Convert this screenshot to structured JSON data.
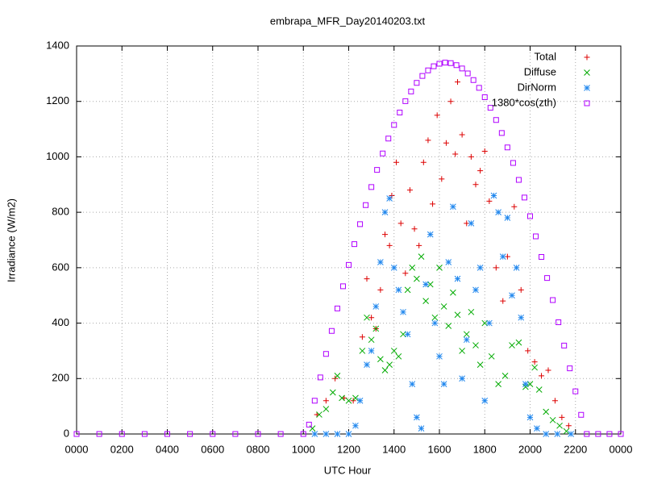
{
  "chart_data": {
    "type": "scatter",
    "title": "embrapa_MFR_Day20140203.txt",
    "x_label": "UTC Hour",
    "y_label": "Irradiance (W/m2)",
    "xlim": [
      0,
      24
    ],
    "ylim": [
      0,
      1400
    ],
    "grid": true,
    "legend": "top-right",
    "xticks": [
      {
        "value": 0,
        "label": "0000"
      },
      {
        "value": 2,
        "label": "0200"
      },
      {
        "value": 4,
        "label": "0400"
      },
      {
        "value": 6,
        "label": "0600"
      },
      {
        "value": 8,
        "label": "0800"
      },
      {
        "value": 10,
        "label": "1000"
      },
      {
        "value": 12,
        "label": "1200"
      },
      {
        "value": 14,
        "label": "1400"
      },
      {
        "value": 16,
        "label": "1600"
      },
      {
        "value": 18,
        "label": "1800"
      },
      {
        "value": 20,
        "label": "2000"
      },
      {
        "value": 22,
        "label": "2200"
      },
      {
        "value": 24,
        "label": "0000"
      }
    ],
    "yticks": [
      0,
      200,
      400,
      600,
      800,
      1000,
      1200,
      1400
    ],
    "series": [
      {
        "name": "Total",
        "color": "#dd0000",
        "marker": "plus",
        "x": [
          10.6,
          11.0,
          11.4,
          11.8,
          12.2,
          12.6,
          12.8,
          13.0,
          13.2,
          13.4,
          13.6,
          13.8,
          13.9,
          14.1,
          14.3,
          14.5,
          14.7,
          14.9,
          15.1,
          15.3,
          15.5,
          15.7,
          15.9,
          16.1,
          16.3,
          16.5,
          16.7,
          16.8,
          17.0,
          17.2,
          17.4,
          17.6,
          17.8,
          18.0,
          18.2,
          18.5,
          18.8,
          19.0,
          19.3,
          19.6,
          19.9,
          20.2,
          20.5,
          20.8,
          21.1,
          21.4,
          21.7
        ],
        "values": [
          70,
          120,
          200,
          130,
          120,
          350,
          560,
          420,
          380,
          520,
          720,
          680,
          860,
          980,
          760,
          580,
          880,
          740,
          680,
          980,
          1060,
          830,
          1150,
          920,
          1050,
          1200,
          1010,
          1270,
          1080,
          760,
          1000,
          900,
          950,
          1020,
          840,
          600,
          480,
          640,
          820,
          520,
          300,
          260,
          210,
          230,
          120,
          60,
          30
        ]
      },
      {
        "name": "Diffuse",
        "color": "#00aa00",
        "marker": "cross",
        "x": [
          10.4,
          10.7,
          11.0,
          11.3,
          11.5,
          11.7,
          12.0,
          12.3,
          12.6,
          12.8,
          13.0,
          13.2,
          13.4,
          13.6,
          13.8,
          14.0,
          14.2,
          14.4,
          14.6,
          14.8,
          15.0,
          15.2,
          15.4,
          15.6,
          15.8,
          16.0,
          16.2,
          16.4,
          16.6,
          16.8,
          17.0,
          17.2,
          17.4,
          17.6,
          17.8,
          18.0,
          18.3,
          18.6,
          18.9,
          19.2,
          19.5,
          19.8,
          20.0,
          20.2,
          20.4,
          20.7,
          21.0,
          21.3,
          21.6
        ],
        "values": [
          20,
          70,
          90,
          150,
          210,
          130,
          120,
          130,
          300,
          420,
          340,
          380,
          270,
          230,
          250,
          300,
          280,
          360,
          520,
          600,
          560,
          640,
          480,
          540,
          420,
          600,
          460,
          390,
          510,
          430,
          300,
          360,
          440,
          320,
          250,
          400,
          280,
          180,
          210,
          320,
          330,
          170,
          180,
          240,
          160,
          80,
          50,
          30,
          10
        ]
      },
      {
        "name": "DirNorm",
        "color": "#2288ee",
        "marker": "star",
        "x": [
          10.5,
          11.0,
          11.5,
          12.0,
          12.3,
          12.5,
          12.8,
          13.0,
          13.2,
          13.4,
          13.6,
          13.8,
          14.0,
          14.2,
          14.4,
          14.6,
          14.8,
          15.0,
          15.2,
          15.4,
          15.6,
          15.8,
          16.0,
          16.2,
          16.4,
          16.6,
          16.8,
          17.0,
          17.2,
          17.4,
          17.6,
          17.8,
          18.0,
          18.2,
          18.4,
          18.6,
          18.8,
          19.0,
          19.2,
          19.4,
          19.6,
          19.8,
          20.0,
          20.3,
          20.7,
          21.2,
          21.8
        ],
        "values": [
          0,
          0,
          0,
          0,
          30,
          120,
          250,
          300,
          460,
          620,
          800,
          850,
          600,
          520,
          440,
          360,
          180,
          60,
          20,
          540,
          720,
          400,
          280,
          180,
          620,
          820,
          560,
          200,
          340,
          760,
          520,
          600,
          120,
          400,
          860,
          800,
          640,
          780,
          500,
          600,
          420,
          180,
          60,
          20,
          0,
          0,
          0
        ]
      },
      {
        "name": "1380*cos(zth)",
        "color": "#b000ff",
        "marker": "square",
        "x": [
          0,
          1,
          2,
          3,
          4,
          5,
          6,
          7,
          8,
          9,
          10,
          10.25,
          10.5,
          10.75,
          11,
          11.25,
          11.5,
          11.75,
          12,
          12.25,
          12.5,
          12.75,
          13,
          13.25,
          13.5,
          13.75,
          14,
          14.25,
          14.5,
          14.75,
          15,
          15.25,
          15.5,
          15.75,
          16,
          16.25,
          16.5,
          16.75,
          17,
          17.25,
          17.5,
          17.75,
          18,
          18.25,
          18.5,
          18.75,
          19,
          19.25,
          19.5,
          19.75,
          20,
          20.25,
          20.5,
          20.75,
          21,
          21.25,
          21.5,
          21.75,
          22,
          22.25,
          22.5,
          23,
          23.5,
          24
        ],
        "values": [
          0,
          0,
          0,
          0,
          0,
          0,
          0,
          0,
          0,
          0,
          0,
          34,
          120,
          204,
          289,
          372,
          453,
          533,
          610,
          685,
          757,
          826,
          891,
          953,
          1012,
          1066,
          1115,
          1160,
          1201,
          1236,
          1267,
          1292,
          1312,
          1327,
          1336,
          1340,
          1338,
          1331,
          1319,
          1301,
          1277,
          1249,
          1215,
          1177,
          1133,
          1086,
          1034,
          978,
          917,
          853,
          786,
          713,
          639,
          563,
          483,
          403,
          319,
          237,
          154,
          69,
          0,
          0,
          0,
          0
        ]
      }
    ]
  }
}
